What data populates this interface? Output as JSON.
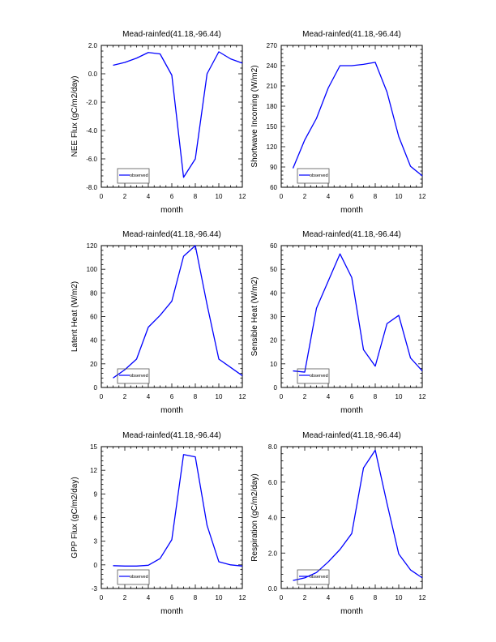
{
  "chart_data": [
    {
      "type": "line",
      "title": "Mead-rainfed(41.18,-96.44)",
      "xlabel": "month",
      "ylabel": "NEE Flux (gC/m2/day)",
      "xlim": [
        0,
        12
      ],
      "ylim": [
        -8,
        2
      ],
      "xticks": [
        0,
        2,
        4,
        6,
        8,
        10,
        12
      ],
      "yticks": [
        -8,
        -6,
        -4,
        -2,
        0,
        2
      ],
      "ytick_labels": [
        "-8.0",
        "-6.0",
        "-4.0",
        "-2.0",
        "0.0",
        "2.0"
      ],
      "legend": {
        "placement": "bottom-left",
        "entries": [
          "observed"
        ]
      },
      "series": [
        {
          "name": "observed",
          "color": "#0000ff",
          "x": [
            1,
            2,
            3,
            4,
            5,
            6,
            7,
            8,
            9,
            10,
            11,
            12
          ],
          "values": [
            0.6,
            0.8,
            1.1,
            1.5,
            1.4,
            -0.1,
            -7.3,
            -6.0,
            0.0,
            1.55,
            1.05,
            0.75
          ]
        }
      ]
    },
    {
      "type": "line",
      "title": "Mead-rainfed(41.18,-96.44)",
      "xlabel": "month",
      "ylabel": "Shortwave Incoming (W/m2)",
      "xlim": [
        0,
        12
      ],
      "ylim": [
        60,
        270
      ],
      "xticks": [
        0,
        2,
        4,
        6,
        8,
        10,
        12
      ],
      "yticks": [
        60,
        90,
        120,
        150,
        180,
        210,
        240,
        270
      ],
      "ytick_labels": [
        "60",
        "90",
        "120",
        "150",
        "180",
        "210",
        "240",
        "270"
      ],
      "legend": {
        "placement": "bottom-left",
        "entries": [
          "observed"
        ]
      },
      "series": [
        {
          "name": "observed",
          "color": "#0000ff",
          "x": [
            1,
            2,
            3,
            4,
            5,
            6,
            7,
            8,
            9,
            10,
            11,
            12
          ],
          "values": [
            88,
            130,
            162,
            207,
            240,
            240,
            242,
            245,
            201,
            135,
            91,
            77
          ]
        }
      ]
    },
    {
      "type": "line",
      "title": "Mead-rainfed(41.18,-96.44)",
      "xlabel": "month",
      "ylabel": "Latent Heat (W/m2)",
      "xlim": [
        0,
        12
      ],
      "ylim": [
        0,
        120
      ],
      "xticks": [
        0,
        2,
        4,
        6,
        8,
        10,
        12
      ],
      "yticks": [
        0,
        20,
        40,
        60,
        80,
        100,
        120
      ],
      "ytick_labels": [
        "0",
        "20",
        "40",
        "60",
        "80",
        "100",
        "120"
      ],
      "legend": {
        "placement": "bottom-left",
        "entries": [
          "observed"
        ]
      },
      "series": [
        {
          "name": "observed",
          "color": "#0000ff",
          "x": [
            1,
            2,
            3,
            4,
            5,
            6,
            7,
            8,
            9,
            10,
            11,
            12
          ],
          "values": [
            8,
            15,
            24,
            51,
            61,
            73,
            111,
            120,
            70,
            24,
            17,
            10
          ]
        }
      ]
    },
    {
      "type": "line",
      "title": "Mead-rainfed(41.18,-96.44)",
      "xlabel": "month",
      "ylabel": "Sensible Heat (W/m2)",
      "xlim": [
        0,
        12
      ],
      "ylim": [
        0,
        60
      ],
      "xticks": [
        0,
        2,
        4,
        6,
        8,
        10,
        12
      ],
      "yticks": [
        0,
        10,
        20,
        30,
        40,
        50,
        60
      ],
      "ytick_labels": [
        "0",
        "10",
        "20",
        "30",
        "40",
        "50",
        "60"
      ],
      "legend": {
        "placement": "bottom-left",
        "entries": [
          "observed"
        ]
      },
      "series": [
        {
          "name": "observed",
          "color": "#0000ff",
          "x": [
            1,
            2,
            3,
            4,
            5,
            6,
            7,
            8,
            9,
            10,
            11,
            12
          ],
          "values": [
            7,
            6.5,
            33.5,
            45,
            56.5,
            46.5,
            16,
            9,
            27,
            30.5,
            12.5,
            7
          ]
        }
      ]
    },
    {
      "type": "line",
      "title": "Mead-rainfed(41.18,-96.44)",
      "xlabel": "month",
      "ylabel": "GPP Flux (gC/m2/day)",
      "xlim": [
        0,
        12
      ],
      "ylim": [
        -3,
        15
      ],
      "xticks": [
        0,
        2,
        4,
        6,
        8,
        10,
        12
      ],
      "yticks": [
        -3,
        0,
        3,
        6,
        9,
        12,
        15
      ],
      "ytick_labels": [
        "-3",
        "0",
        "3",
        "6",
        "9",
        "12",
        "15"
      ],
      "legend": {
        "placement": "bottom-left",
        "entries": [
          "observed"
        ]
      },
      "series": [
        {
          "name": "observed",
          "color": "#0000ff",
          "x": [
            1,
            2,
            3,
            4,
            5,
            6,
            7,
            8,
            9,
            10,
            11,
            12
          ],
          "values": [
            -0.1,
            -0.15,
            -0.15,
            -0.05,
            0.8,
            3.2,
            14.0,
            13.7,
            5.0,
            0.4,
            0.0,
            -0.15
          ]
        }
      ]
    },
    {
      "type": "line",
      "title": "Mead-rainfed(41.18,-96.44)",
      "xlabel": "month",
      "ylabel": "Respiration (gC/m2/day)",
      "xlim": [
        0,
        12
      ],
      "ylim": [
        0,
        8
      ],
      "xticks": [
        0,
        2,
        4,
        6,
        8,
        10,
        12
      ],
      "yticks": [
        0,
        2,
        4,
        6,
        8
      ],
      "ytick_labels": [
        "0.0",
        "2.0",
        "4.0",
        "6.0",
        "8.0"
      ],
      "legend": {
        "placement": "bottom-left",
        "entries": [
          "observed"
        ]
      },
      "series": [
        {
          "name": "observed",
          "color": "#0000ff",
          "x": [
            1,
            2,
            3,
            4,
            5,
            6,
            7,
            8,
            9,
            10,
            11,
            12
          ],
          "values": [
            0.45,
            0.6,
            0.9,
            1.5,
            2.2,
            3.1,
            6.8,
            7.8,
            4.8,
            1.95,
            1.05,
            0.6
          ]
        }
      ]
    }
  ]
}
